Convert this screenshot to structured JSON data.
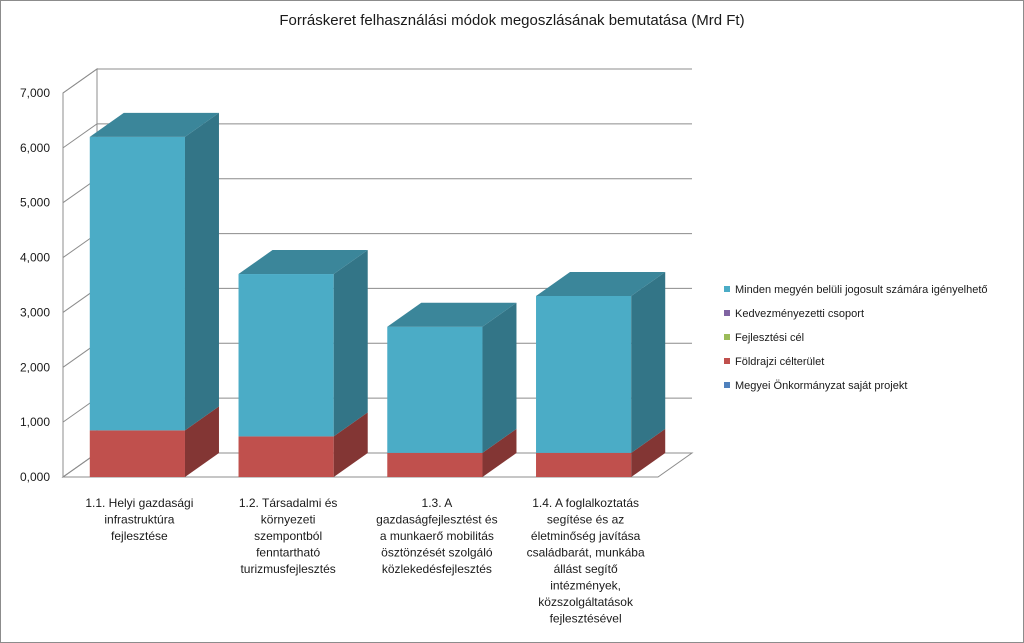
{
  "chart_data": {
    "type": "bar",
    "stacked": true,
    "three_d": true,
    "title": "Forráskeret felhasználási módok megoszlásának bemutatása (Mrd Ft)",
    "xlabel": "",
    "ylabel": "",
    "ylim": [
      0,
      7
    ],
    "y_ticks": [
      {
        "value": 0,
        "label": "0,000"
      },
      {
        "value": 1,
        "label": "1,000"
      },
      {
        "value": 2,
        "label": "2,000"
      },
      {
        "value": 3,
        "label": "3,000"
      },
      {
        "value": 4,
        "label": "4,000"
      },
      {
        "value": 5,
        "label": "5,000"
      },
      {
        "value": 6,
        "label": "6,000"
      },
      {
        "value": 7,
        "label": "7,000"
      }
    ],
    "grid": true,
    "legend_position": "right",
    "categories": [
      [
        "1.1. Helyi gazdasági",
        "infrastruktúra",
        "fejlesztése"
      ],
      [
        "1.2. Társadalmi és",
        "környezeti",
        "szempontból",
        "fenntartható",
        "turizmusfejlesztés"
      ],
      [
        "1.3. A",
        "gazdaságfejlesztést és",
        "a munkaerő mobilitás",
        "ösztönzését szolgáló",
        "közlekedésfejlesztés"
      ],
      [
        "1.4. A foglalkoztatás",
        "segítése és az",
        "életminőség javítása",
        "családbarát, munkába",
        "állást segítő",
        "intézmények,",
        "közszolgáltatások",
        "fejlesztésével"
      ]
    ],
    "series": [
      {
        "name": "Megyei Önkormányzat saját projekt",
        "color": "#4f81bd",
        "values": [
          0,
          0,
          0,
          0
        ]
      },
      {
        "name": "Földrajzi célterület",
        "color": "#c0504d",
        "values": [
          0.85,
          0.74,
          0.44,
          0.44
        ]
      },
      {
        "name": "Fejlesztési cél",
        "color": "#9bbb59",
        "values": [
          0,
          0,
          0,
          0
        ]
      },
      {
        "name": "Kedvezményezetti csoport",
        "color": "#8064a2",
        "values": [
          0,
          0,
          0,
          0
        ]
      },
      {
        "name": "Minden megyén belüli jogosult számára igényelhető",
        "color": "#4bacc6",
        "values": [
          5.35,
          2.96,
          2.3,
          2.86
        ]
      }
    ],
    "legend_order": [
      "Minden megyén belüli jogosult számára igényelhető",
      "Kedvezményezetti csoport",
      "Fejlesztési cél",
      "Földrajzi célterület",
      "Megyei Önkormányzat saját projekt"
    ]
  }
}
